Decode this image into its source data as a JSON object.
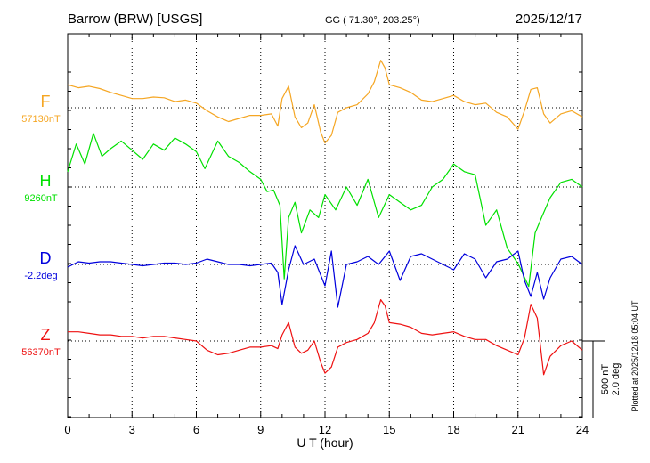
{
  "header": {
    "station": "Barrow (BRW)  [USGS]",
    "coords": "GG ( 71.30°, 203.25°)",
    "date": "2025/12/17"
  },
  "footer": {
    "plotted": "Plotted at 2025/12/18 05:04 UT"
  },
  "scale": {
    "nt": "500 nT",
    "deg": "2.0 deg"
  },
  "chart_data": {
    "type": "line",
    "title": "Barrow (BRW)  [USGS]",
    "xlabel": "U T (hour)",
    "xlim": [
      0,
      24
    ],
    "x_ticks": [
      "0",
      "3",
      "6",
      "9",
      "12",
      "15",
      "18",
      "21",
      "24"
    ],
    "grid": true,
    "series": [
      {
        "name": "F",
        "baseline_label": "57130nT",
        "color": "#f5a623",
        "x": [
          0,
          0.5,
          1,
          1.5,
          2,
          2.5,
          3,
          3.5,
          4,
          4.5,
          5,
          5.5,
          6,
          6.5,
          7,
          7.5,
          8,
          8.5,
          9,
          9.5,
          9.8,
          10,
          10.3,
          10.6,
          10.9,
          11.2,
          11.5,
          11.8,
          12,
          12.3,
          12.6,
          13,
          13.5,
          14,
          14.3,
          14.6,
          14.8,
          15,
          15.5,
          16,
          16.5,
          17,
          17.5,
          18,
          18.5,
          19,
          19.5,
          20,
          20.5,
          21,
          21.3,
          21.6,
          21.9,
          22.2,
          22.5,
          23,
          23.5,
          24
        ],
        "values": [
          150,
          130,
          140,
          125,
          100,
          80,
          60,
          60,
          70,
          65,
          40,
          50,
          30,
          -20,
          -60,
          -90,
          -70,
          -50,
          -50,
          -40,
          -120,
          60,
          140,
          -60,
          -130,
          -100,
          20,
          -160,
          -230,
          -180,
          -30,
          0,
          20,
          90,
          170,
          310,
          260,
          150,
          130,
          100,
          50,
          40,
          60,
          80,
          40,
          20,
          30,
          -30,
          -60,
          -140,
          -20,
          120,
          130,
          -40,
          -100,
          -40,
          -20,
          -60
        ]
      },
      {
        "name": "H",
        "baseline_label": "9260nT",
        "color": "#00e000",
        "x": [
          0,
          0.4,
          0.8,
          1.2,
          1.6,
          2,
          2.5,
          3,
          3.5,
          4,
          4.5,
          5,
          5.5,
          6,
          6.4,
          7,
          7.5,
          8,
          8.5,
          9,
          9.3,
          9.6,
          9.9,
          10.1,
          10.3,
          10.6,
          10.9,
          11.3,
          11.7,
          12,
          12.5,
          13,
          13.5,
          14,
          14.5,
          15,
          15.5,
          16,
          16.5,
          17,
          17.5,
          18,
          18.5,
          19,
          19.5,
          20,
          20.5,
          21,
          21.5,
          21.8,
          22.1,
          22.5,
          23,
          23.5,
          24
        ],
        "values": [
          100,
          280,
          150,
          350,
          200,
          250,
          300,
          240,
          180,
          280,
          240,
          320,
          280,
          230,
          120,
          300,
          200,
          160,
          100,
          50,
          -30,
          -20,
          -120,
          -600,
          -200,
          -100,
          -300,
          -150,
          -200,
          -50,
          -150,
          0,
          -120,
          50,
          -200,
          -50,
          -100,
          -150,
          -120,
          0,
          50,
          150,
          100,
          80,
          -250,
          -150,
          -400,
          -500,
          -650,
          -300,
          -200,
          -70,
          30,
          50,
          0
        ]
      },
      {
        "name": "D",
        "baseline_label": "-2.2deg",
        "color": "#0000dd",
        "x": [
          0,
          0.5,
          1,
          1.5,
          2,
          2.5,
          3,
          3.5,
          4,
          4.5,
          5,
          5.5,
          6,
          6.5,
          7,
          7.5,
          8,
          8.5,
          9,
          9.5,
          9.8,
          10,
          10.3,
          10.6,
          11,
          11.5,
          12,
          12.3,
          12.6,
          13,
          13.5,
          14,
          14.5,
          15,
          15.5,
          16,
          16.5,
          17,
          17.5,
          18,
          18.5,
          19,
          19.5,
          20,
          20.5,
          21,
          21.3,
          21.6,
          21.9,
          22.2,
          22.5,
          23,
          23.5,
          24
        ],
        "values": [
          -0.1,
          0.1,
          0.05,
          0.1,
          0.1,
          0.05,
          0.0,
          -0.05,
          0.0,
          0.05,
          0.05,
          0.0,
          0.05,
          0.2,
          0.1,
          0.0,
          0.0,
          -0.05,
          0.0,
          0.05,
          -0.3,
          -1.5,
          -0.2,
          0.7,
          0.0,
          0.2,
          -0.8,
          0.5,
          -1.6,
          0.0,
          0.1,
          0.3,
          0.0,
          0.5,
          -0.6,
          0.3,
          0.4,
          0.2,
          0.0,
          -0.2,
          0.4,
          0.2,
          -0.5,
          0.1,
          0.2,
          0.5,
          -0.6,
          -1.2,
          -0.3,
          -1.3,
          -0.5,
          0.2,
          0.3,
          0.0
        ]
      },
      {
        "name": "Z",
        "baseline_label": "56370nT",
        "color": "#ee1111",
        "x": [
          0,
          0.5,
          1,
          1.5,
          2,
          2.5,
          3,
          3.5,
          4,
          4.5,
          5,
          5.5,
          6,
          6.5,
          7,
          7.5,
          8,
          8.5,
          9,
          9.5,
          9.8,
          10,
          10.3,
          10.6,
          10.9,
          11.2,
          11.5,
          11.8,
          12,
          12.3,
          12.6,
          13,
          13.5,
          14,
          14.3,
          14.6,
          14.8,
          15,
          15.5,
          16,
          16.5,
          17,
          17.5,
          18,
          18.5,
          19,
          19.5,
          20,
          20.5,
          21,
          21.3,
          21.6,
          21.9,
          22.2,
          22.5,
          23,
          23.5,
          24
        ],
        "values": [
          60,
          60,
          50,
          40,
          40,
          30,
          30,
          20,
          30,
          30,
          20,
          10,
          0,
          -60,
          -90,
          -80,
          -60,
          -40,
          -40,
          -30,
          -50,
          40,
          120,
          -40,
          -80,
          -60,
          0,
          -140,
          -210,
          -170,
          -40,
          -10,
          10,
          50,
          120,
          270,
          230,
          120,
          110,
          90,
          50,
          40,
          50,
          60,
          30,
          10,
          10,
          -30,
          -60,
          -90,
          20,
          240,
          150,
          -220,
          -100,
          -30,
          0,
          -60
        ]
      }
    ]
  }
}
